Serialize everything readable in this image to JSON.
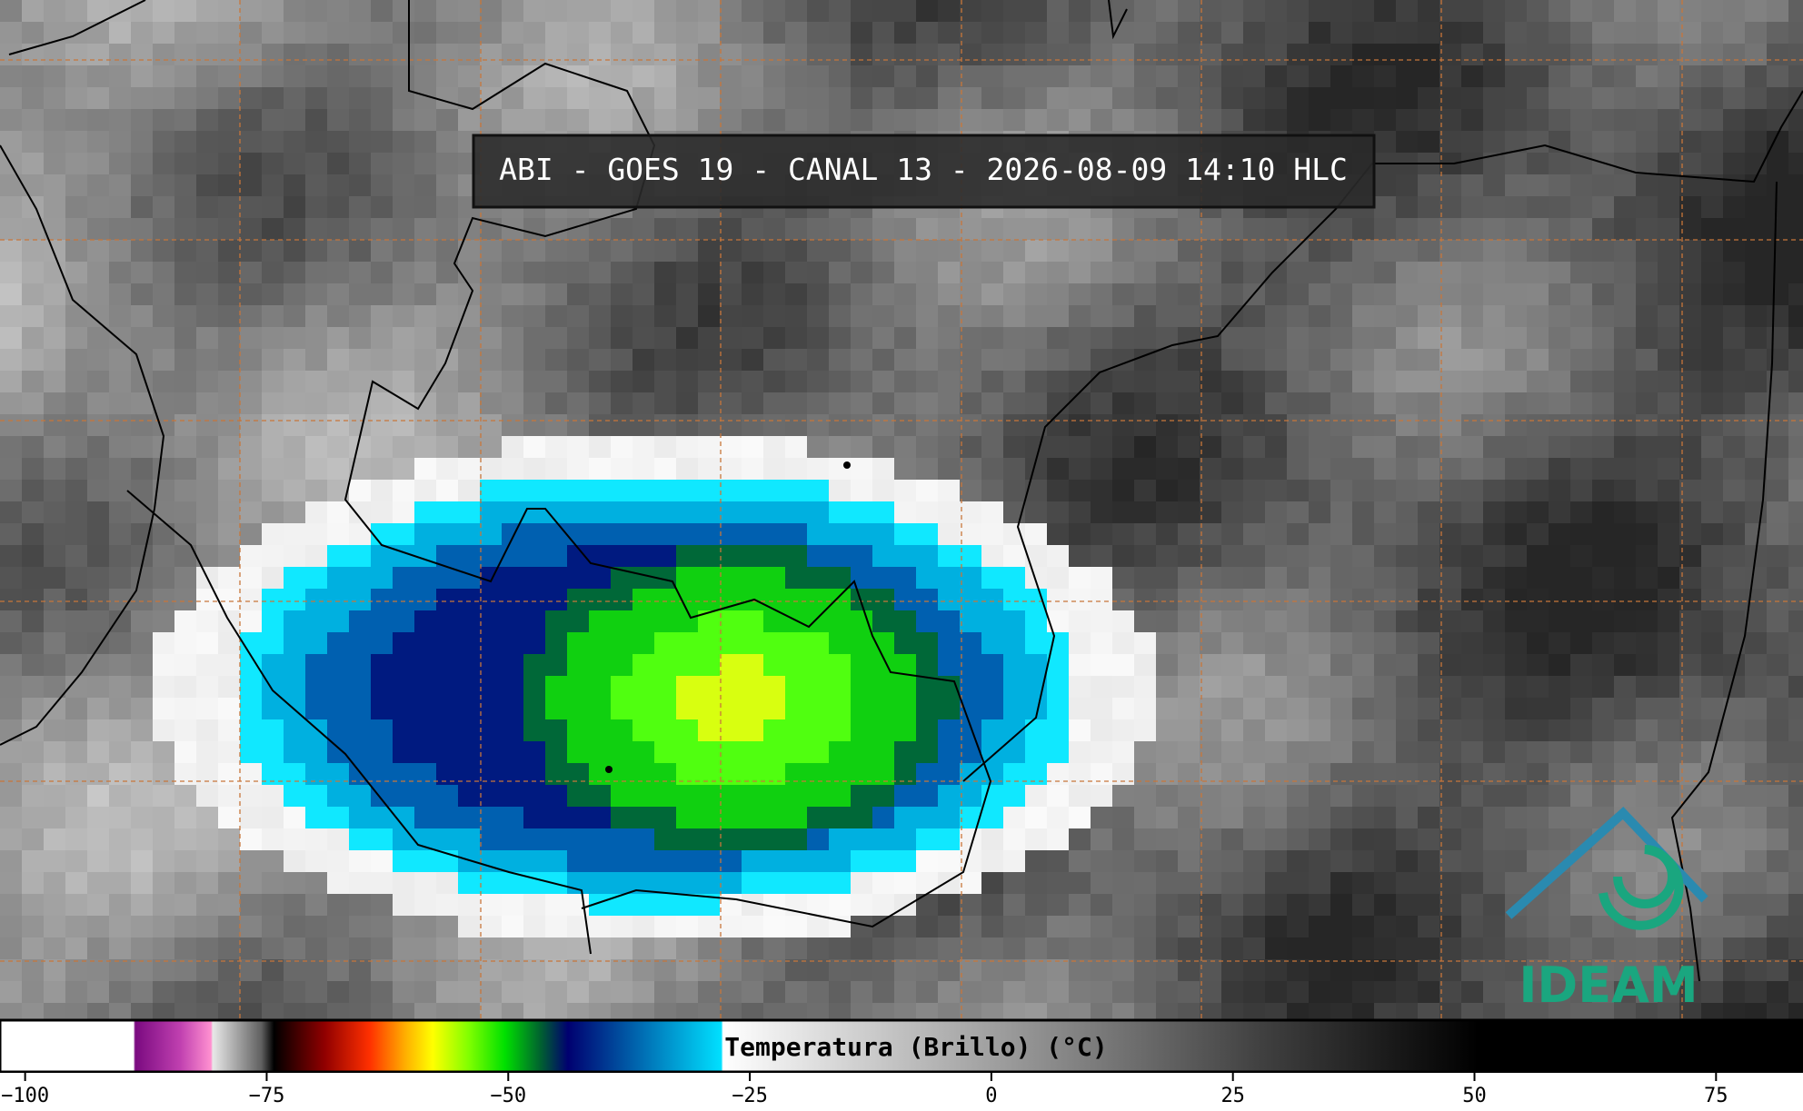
{
  "title": "ABI - GOES 19 - CANAL 13 - 2026-08-09 14:10 HLC",
  "colorbar": {
    "label": "Temperatura (Brillo) (°C)",
    "lim": [
      -102.6,
      84
    ],
    "ticks": [
      {
        "value": -100,
        "label": "−100"
      },
      {
        "value": -75,
        "label": "−75"
      },
      {
        "value": -50,
        "label": "−50"
      },
      {
        "value": -25,
        "label": "−25"
      },
      0,
      25,
      50,
      75
    ]
  },
  "logo": "IDEAM"
}
